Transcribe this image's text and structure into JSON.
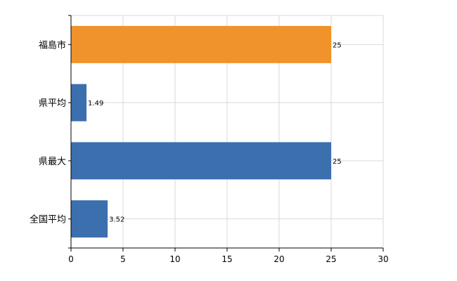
{
  "chart_data": {
    "type": "bar",
    "orientation": "horizontal",
    "categories": [
      "福島市",
      "県平均",
      "県最大",
      "全国平均"
    ],
    "values": [
      25,
      1.49,
      25,
      3.52
    ],
    "data_labels": [
      "25",
      "1.49",
      "25",
      "3.52"
    ],
    "colors": [
      "#f0932b",
      "#3c6fae",
      "#3c6fae",
      "#3c6fae"
    ],
    "xlim": [
      0,
      30
    ],
    "x_ticks": [
      0,
      5,
      10,
      15,
      20,
      25,
      30
    ],
    "x_tick_labels": [
      "0",
      "5",
      "10",
      "15",
      "20",
      "25",
      "30"
    ],
    "grid": true,
    "title": "",
    "xlabel": "",
    "ylabel": ""
  }
}
